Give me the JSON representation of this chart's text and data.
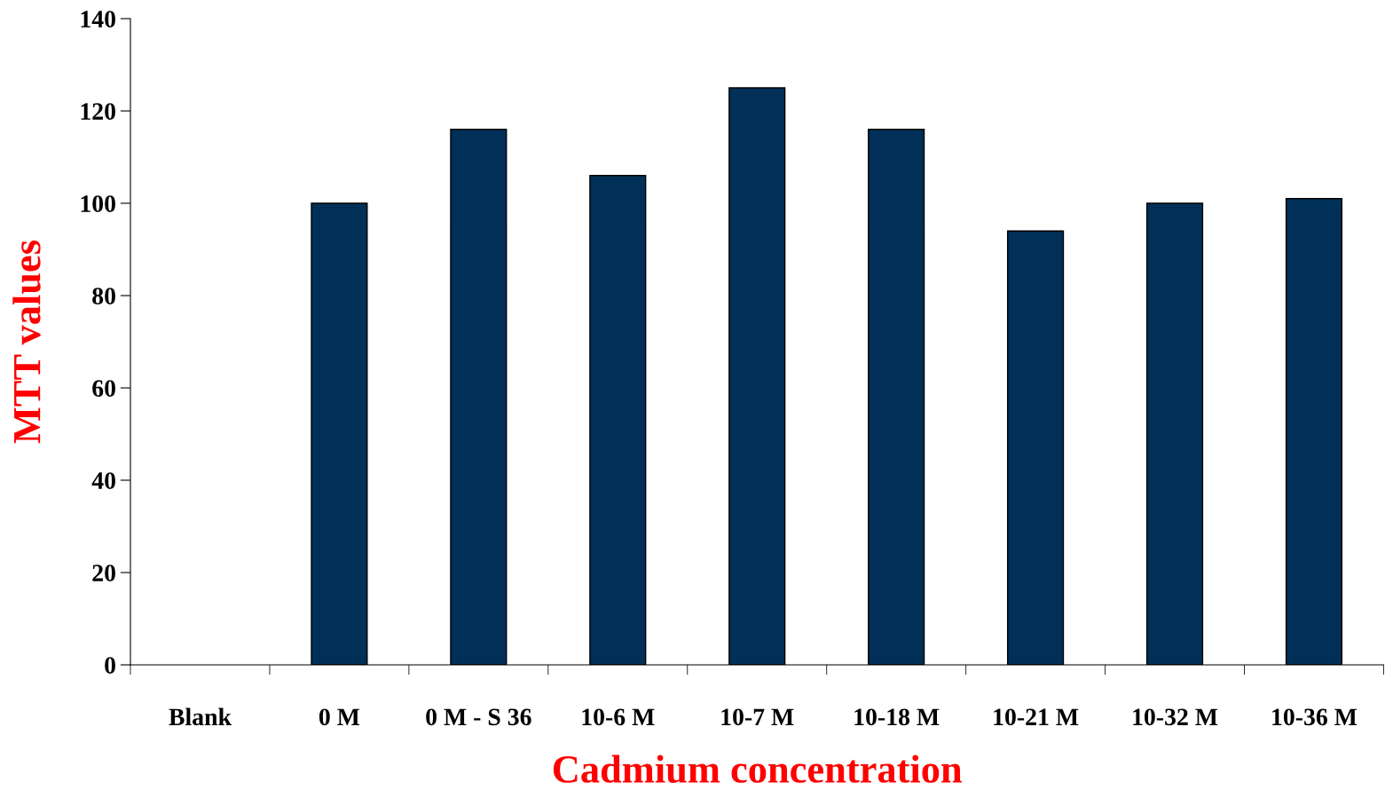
{
  "chart_data": {
    "type": "bar",
    "xlabel": "Cadmium concentration",
    "ylabel": "MTT values",
    "categories": [
      "Blank",
      "0 M",
      "0 M - S 36",
      "10-6 M",
      "10-7 M",
      "10-18 M",
      "10-21 M",
      "10-32 M",
      "10-36 M"
    ],
    "values": [
      null,
      100,
      116,
      106,
      125,
      116,
      94,
      100,
      101
    ],
    "color": "#003057",
    "ylim": [
      0,
      140
    ],
    "yticks": [
      0,
      20,
      40,
      60,
      80,
      100,
      120,
      140
    ],
    "grid": false,
    "legend": false
  }
}
